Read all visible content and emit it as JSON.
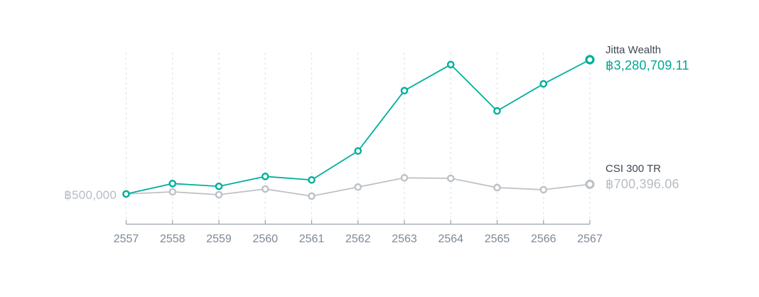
{
  "chart_data": {
    "type": "line",
    "x_labels": [
      "2557",
      "2558",
      "2559",
      "2560",
      "2561",
      "2562",
      "2563",
      "2564",
      "2565",
      "2566",
      "2567"
    ],
    "baseline": {
      "label": "฿500,000",
      "value": 500000
    },
    "series": [
      {
        "name": "Jitta Wealth",
        "end_value_label": "฿3,280,709.11",
        "end_value": 3280709.11,
        "values": [
          500000,
          716000,
          658000,
          863000,
          790000,
          1390000,
          2640000,
          3180000,
          2220000,
          2780000,
          3280709.11
        ],
        "line_color": "#00AF9D",
        "value_color": "#00A693"
      },
      {
        "name": "CSI 300 TR",
        "end_value_label": "฿700,396.06",
        "end_value": 700396.06,
        "values": [
          500000,
          544000,
          485000,
          603000,
          456000,
          643000,
          834000,
          824000,
          632000,
          588000,
          700396.06
        ],
        "line_color": "#BDC2C7",
        "value_color": "#B7BDC3"
      }
    ],
    "colors": {
      "series_name_text": "#3E4852",
      "axis_line": "#9AA3AC",
      "x_tick_label": "#7D8997",
      "gridline": "#E3E5E7",
      "baseline_label_text": "#B7BDC3",
      "marker_fill": "#FFFFFF"
    },
    "layout_hints": {
      "gridlines": "vertical-dashed",
      "legend_position": "right-of-last-point",
      "y_axis_labels": "hidden-except-baseline"
    }
  }
}
